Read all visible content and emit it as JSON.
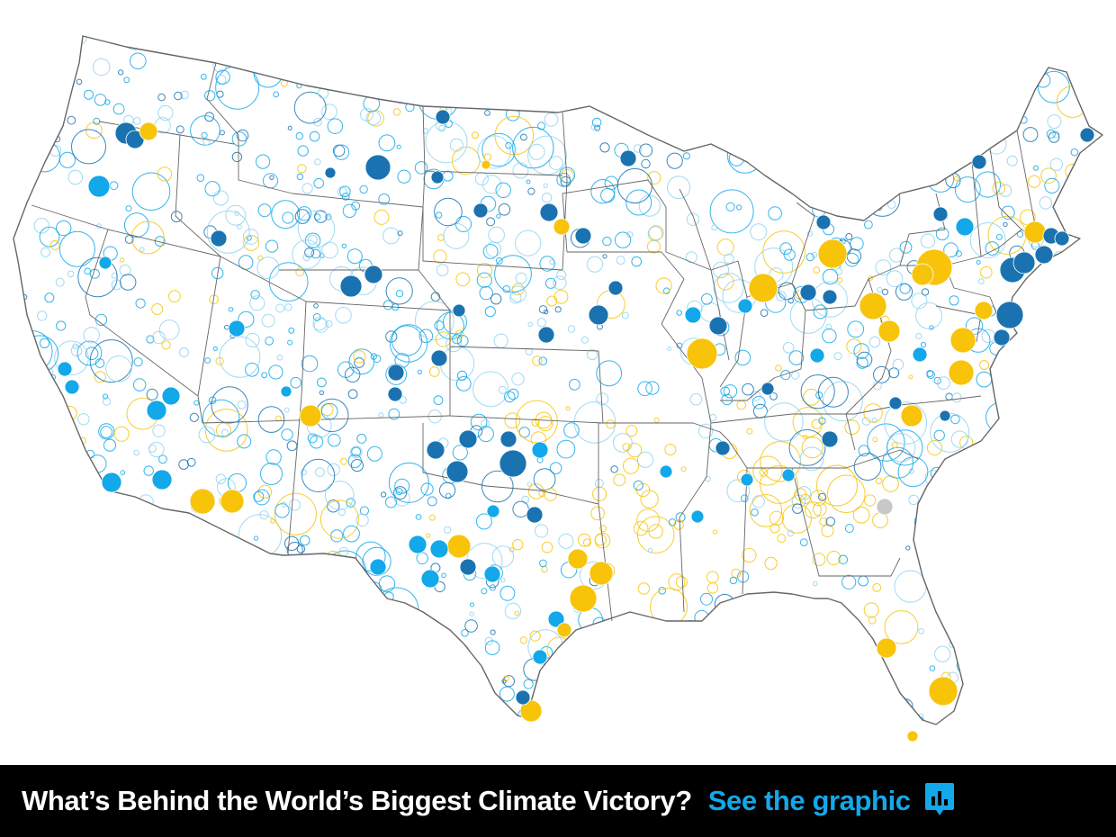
{
  "map": {
    "subject": "Contiguous United States",
    "colors": {
      "dark_blue": "#1a73b0",
      "light_blue": "#12a8ea",
      "pale_blue": "#8fd4f2",
      "yellow": "#f7c40a",
      "gray": "#c8c8c8",
      "state_border": "#666666",
      "land": "#ffffff"
    }
  },
  "banner": {
    "headline": "What’s Behind the World’s Biggest Climate Victory?",
    "cta_label": "See the graphic",
    "cta_color": "#12a8ea",
    "icon": "bar-chart-icon"
  }
}
